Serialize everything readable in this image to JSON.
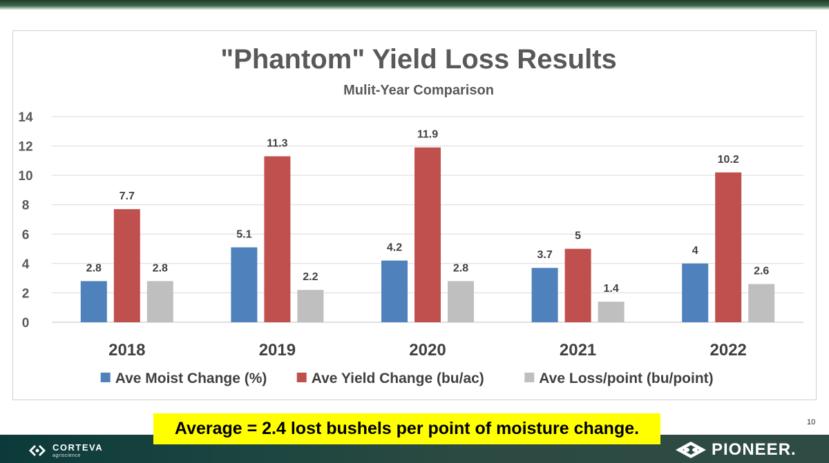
{
  "chart_data": {
    "type": "bar",
    "title": "\"Phantom\" Yield Loss Results",
    "subtitle": "Mulit-Year Comparison",
    "categories": [
      "2018",
      "2019",
      "2020",
      "2021",
      "2022"
    ],
    "series": [
      {
        "name": "Ave Moist Change (%)",
        "color": "#4f81bd",
        "values": [
          2.8,
          5.1,
          4.2,
          3.7,
          4
        ]
      },
      {
        "name": "Ave Yield Change (bu/ac)",
        "color": "#c0504d",
        "values": [
          7.7,
          11.3,
          11.9,
          5,
          10.2
        ]
      },
      {
        "name": "Ave Loss/point (bu/point)",
        "color": "#bfbfbf",
        "values": [
          2.8,
          2.2,
          2.8,
          1.4,
          2.6
        ]
      }
    ],
    "ylim": [
      0,
      14
    ],
    "yticks": [
      0,
      2,
      4,
      6,
      8,
      10,
      12,
      14
    ],
    "grid": true,
    "legend": "bottom",
    "xlabel": "",
    "ylabel": ""
  },
  "callout": {
    "text": "Average = 2.4 lost bushels per point of moisture change."
  },
  "page": {
    "number": "10"
  },
  "footer": {
    "left_logo_name": "CORTEVA",
    "left_logo_sub": "agriscience",
    "right_logo_name": "PIONEER."
  },
  "colors": {
    "footer": "#1f4540",
    "callout_bg": "#ffff00"
  }
}
